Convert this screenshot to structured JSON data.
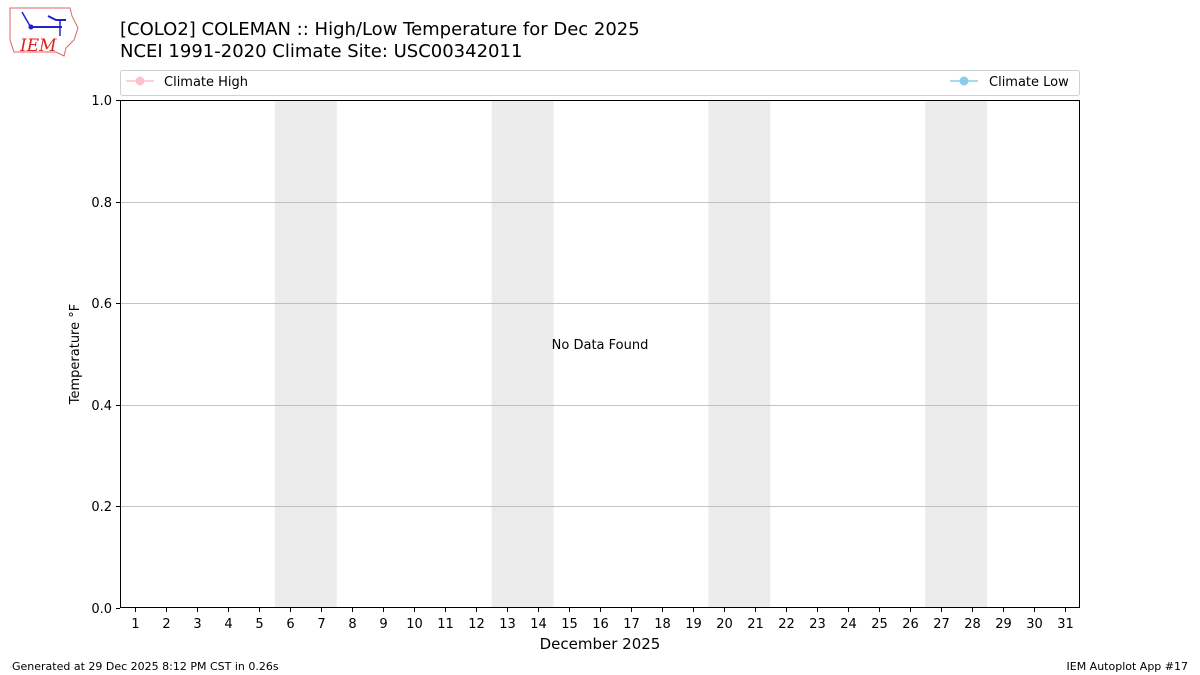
{
  "header": {
    "title_line1": "[COLO2] COLEMAN :: High/Low Temperature for Dec 2025",
    "title_line2": "NCEI 1991-2020 Climate Site: USC00342011",
    "logo_text": "IEM"
  },
  "footer": {
    "generated": "Generated at 29 Dec 2025 8:12 PM CST in 0.26s",
    "app": "IEM Autoplot App #17"
  },
  "chart_data": {
    "type": "line",
    "xlabel": "December 2025",
    "ylabel": "Temperature °F",
    "xlim": [
      0.5,
      31.5
    ],
    "ylim": [
      0,
      1
    ],
    "x_ticks": [
      1,
      2,
      3,
      4,
      5,
      6,
      7,
      8,
      9,
      10,
      11,
      12,
      13,
      14,
      15,
      16,
      17,
      18,
      19,
      20,
      21,
      22,
      23,
      24,
      25,
      26,
      27,
      28,
      29,
      30,
      31
    ],
    "y_ticks": [
      "0.0",
      "0.2",
      "0.4",
      "0.6",
      "0.8",
      "1.0"
    ],
    "y_tick_values": [
      0,
      0.2,
      0.4,
      0.6,
      0.8,
      1.0
    ],
    "grid": "horizontal",
    "weekend_shading": [
      [
        5.5,
        7.5
      ],
      [
        12.5,
        14.5
      ],
      [
        19.5,
        21.5
      ],
      [
        26.5,
        28.5
      ]
    ],
    "shading_color": "#ececec",
    "annotation": "No Data Found",
    "annotation_at": [
      16,
      0.5
    ],
    "legend_placement": "top, above plot",
    "series": [
      {
        "name": "Climate High",
        "color": "#ffc0cb",
        "values": []
      },
      {
        "name": "Climate Low",
        "color": "#87ceeb",
        "values": []
      }
    ]
  }
}
